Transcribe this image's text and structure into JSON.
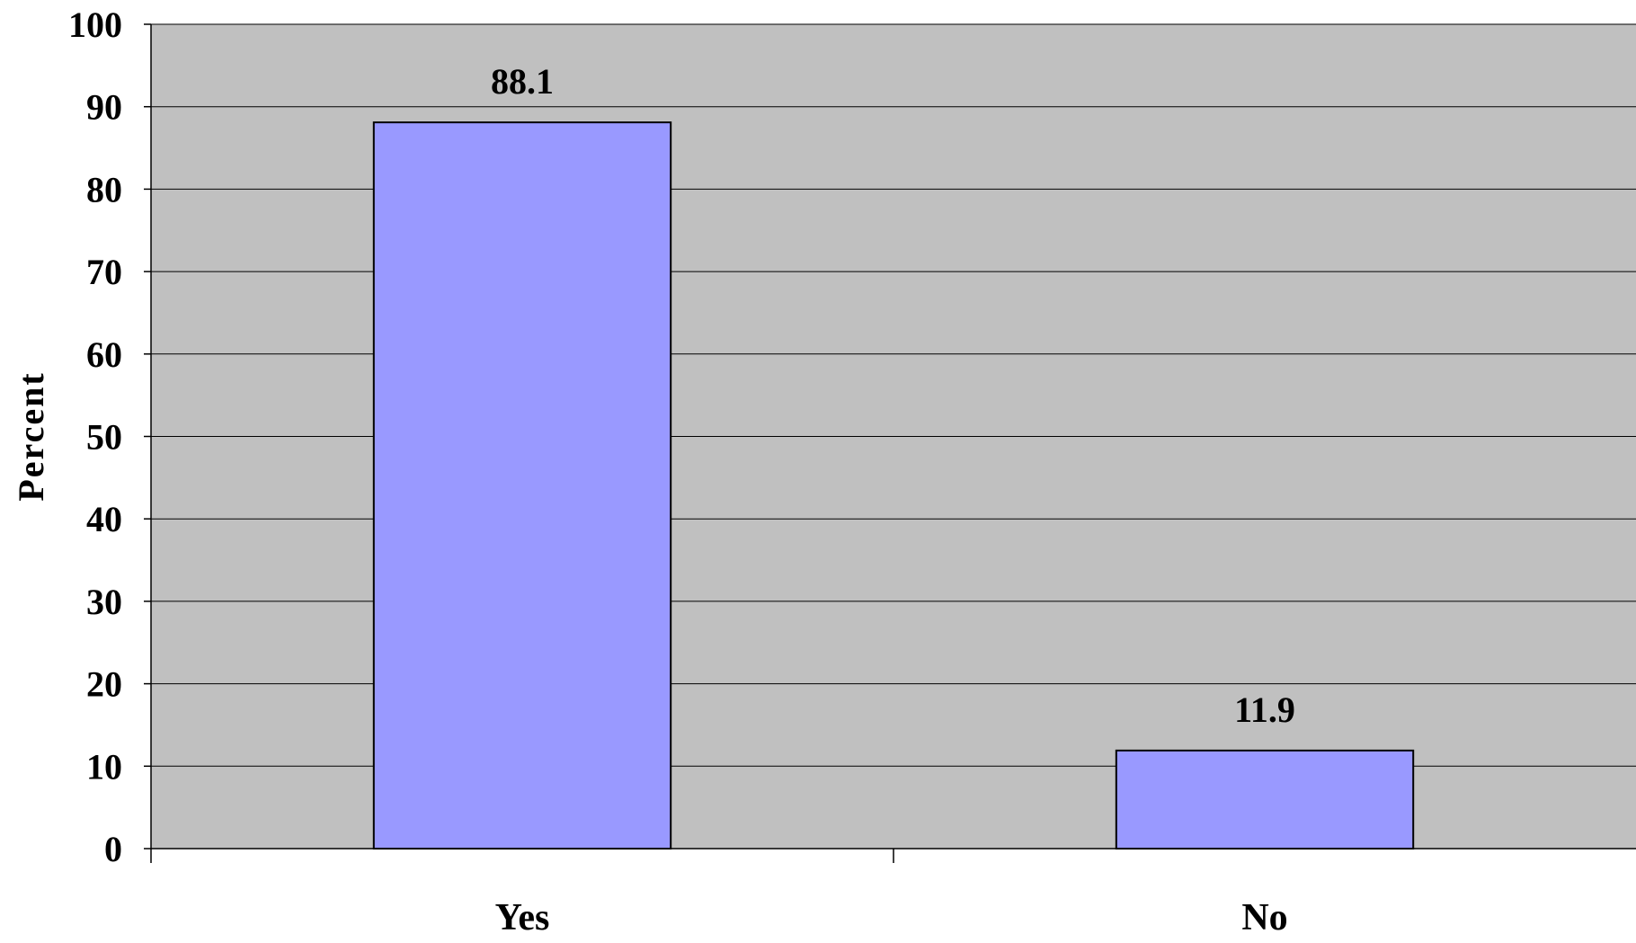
{
  "chart_data": {
    "type": "bar",
    "categories": [
      "Yes",
      "No"
    ],
    "values": [
      88.1,
      11.9
    ],
    "data_labels": [
      "88.1",
      "11.9"
    ],
    "ylabel": "Percent",
    "xlabel": "",
    "ylim": [
      0,
      100
    ],
    "yticks": [
      "0",
      "10",
      "20",
      "30",
      "40",
      "50",
      "60",
      "70",
      "80",
      "90",
      "100"
    ],
    "grid": true,
    "legend": "none"
  },
  "colors": {
    "plot_background": "#c0c0c0",
    "bar_fill": "#9999ff",
    "bar_stroke": "#000000",
    "gridline": "#000000",
    "text": "#000000"
  }
}
